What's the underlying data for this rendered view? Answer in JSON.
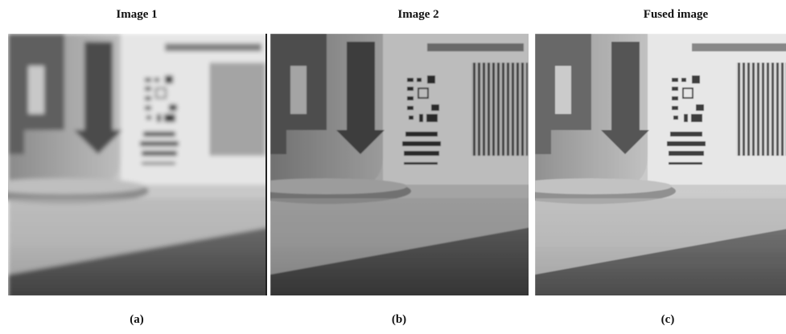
{
  "figure": {
    "panels": [
      {
        "title": "Image 1",
        "caption": "(a)"
      },
      {
        "title": "Image 2",
        "caption": "(b)"
      },
      {
        "title": "Fused image",
        "caption": "(c)"
      }
    ]
  }
}
